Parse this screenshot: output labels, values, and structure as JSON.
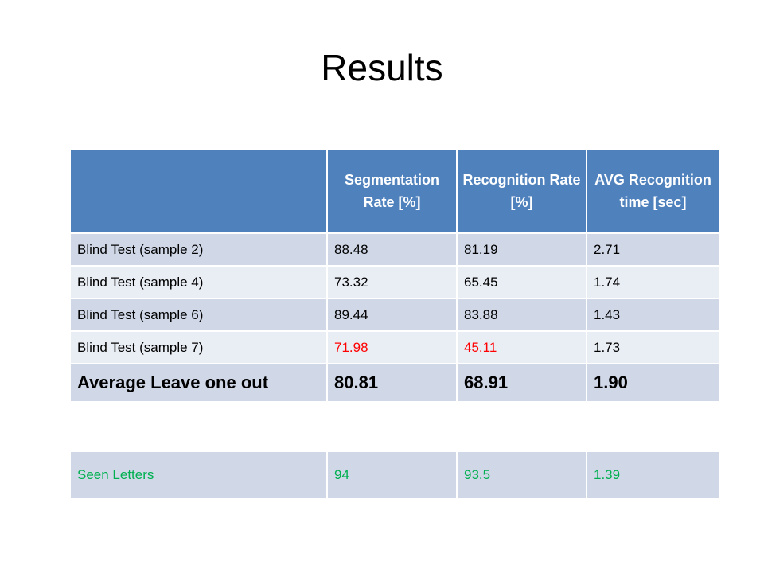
{
  "slide": {
    "title": "Results"
  },
  "results_table": {
    "headers": [
      "",
      "Segmentation Rate [%]",
      "Recognition Rate [%]",
      "AVG Recognition time [sec]"
    ],
    "rows": [
      {
        "cells": [
          "Blind Test (sample 2)",
          "88.48",
          "81.19",
          "2.71"
        ]
      },
      {
        "cells": [
          "Blind Test (sample 4)",
          "73.32",
          "65.45",
          "1.74"
        ]
      },
      {
        "cells": [
          "Blind Test (sample 6)",
          "89.44",
          "83.88",
          "1.43"
        ]
      },
      {
        "cells": [
          "Blind Test (sample 7)",
          "71.98",
          "45.11",
          "1.73"
        ]
      }
    ],
    "average_row": {
      "cells": [
        "Average Leave one out",
        "80.81",
        "68.91",
        "1.90"
      ]
    }
  },
  "seen_table": {
    "row": {
      "cells": [
        "Seen Letters",
        "94",
        "93.5",
        "1.39"
      ]
    }
  },
  "colors": {
    "header_bg": "#4f81bd",
    "row_dark": "#d0d8e8",
    "row_light": "#e9edf4",
    "highlight_red": "#ff0000",
    "highlight_green": "#00b050"
  }
}
